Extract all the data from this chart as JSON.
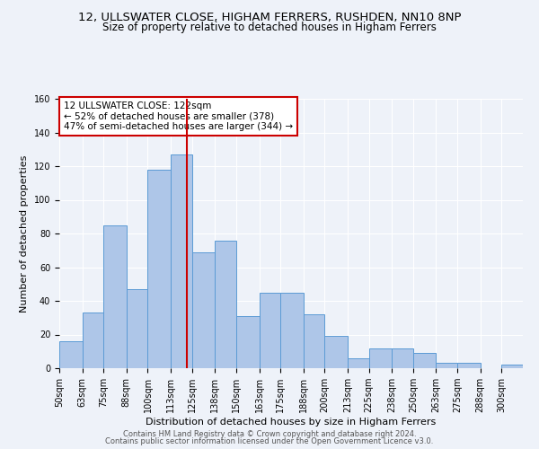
{
  "title": "12, ULLSWATER CLOSE, HIGHAM FERRERS, RUSHDEN, NN10 8NP",
  "subtitle": "Size of property relative to detached houses in Higham Ferrers",
  "xlabel": "Distribution of detached houses by size in Higham Ferrers",
  "ylabel": "Number of detached properties",
  "bar_labels": [
    "50sqm",
    "63sqm",
    "75sqm",
    "88sqm",
    "100sqm",
    "113sqm",
    "125sqm",
    "138sqm",
    "150sqm",
    "163sqm",
    "175sqm",
    "188sqm",
    "200sqm",
    "213sqm",
    "225sqm",
    "238sqm",
    "250sqm",
    "263sqm",
    "275sqm",
    "288sqm",
    "300sqm"
  ],
  "bar_values": [
    16,
    33,
    85,
    47,
    118,
    127,
    69,
    76,
    31,
    45,
    45,
    32,
    19,
    6,
    12,
    12,
    9,
    3,
    3,
    0,
    2
  ],
  "bar_edges": [
    50,
    63,
    75,
    88,
    100,
    113,
    125,
    138,
    150,
    163,
    175,
    188,
    200,
    213,
    225,
    238,
    250,
    263,
    275,
    288,
    300
  ],
  "bar_color": "#aec6e8",
  "bar_edgecolor": "#5b9bd5",
  "vline_x": 122,
  "vline_color": "#cc0000",
  "ylim": [
    0,
    160
  ],
  "yticks": [
    0,
    20,
    40,
    60,
    80,
    100,
    120,
    140,
    160
  ],
  "annotation_box_text": "12 ULLSWATER CLOSE: 122sqm\n← 52% of detached houses are smaller (378)\n47% of semi-detached houses are larger (344) →",
  "footer1": "Contains HM Land Registry data © Crown copyright and database right 2024.",
  "footer2": "Contains public sector information licensed under the Open Government Licence v3.0.",
  "background_color": "#eef2f9",
  "grid_color": "#ffffff",
  "title_fontsize": 9.5,
  "subtitle_fontsize": 8.5,
  "axis_label_fontsize": 8,
  "tick_fontsize": 7,
  "annotation_fontsize": 7.5,
  "footer_fontsize": 6
}
